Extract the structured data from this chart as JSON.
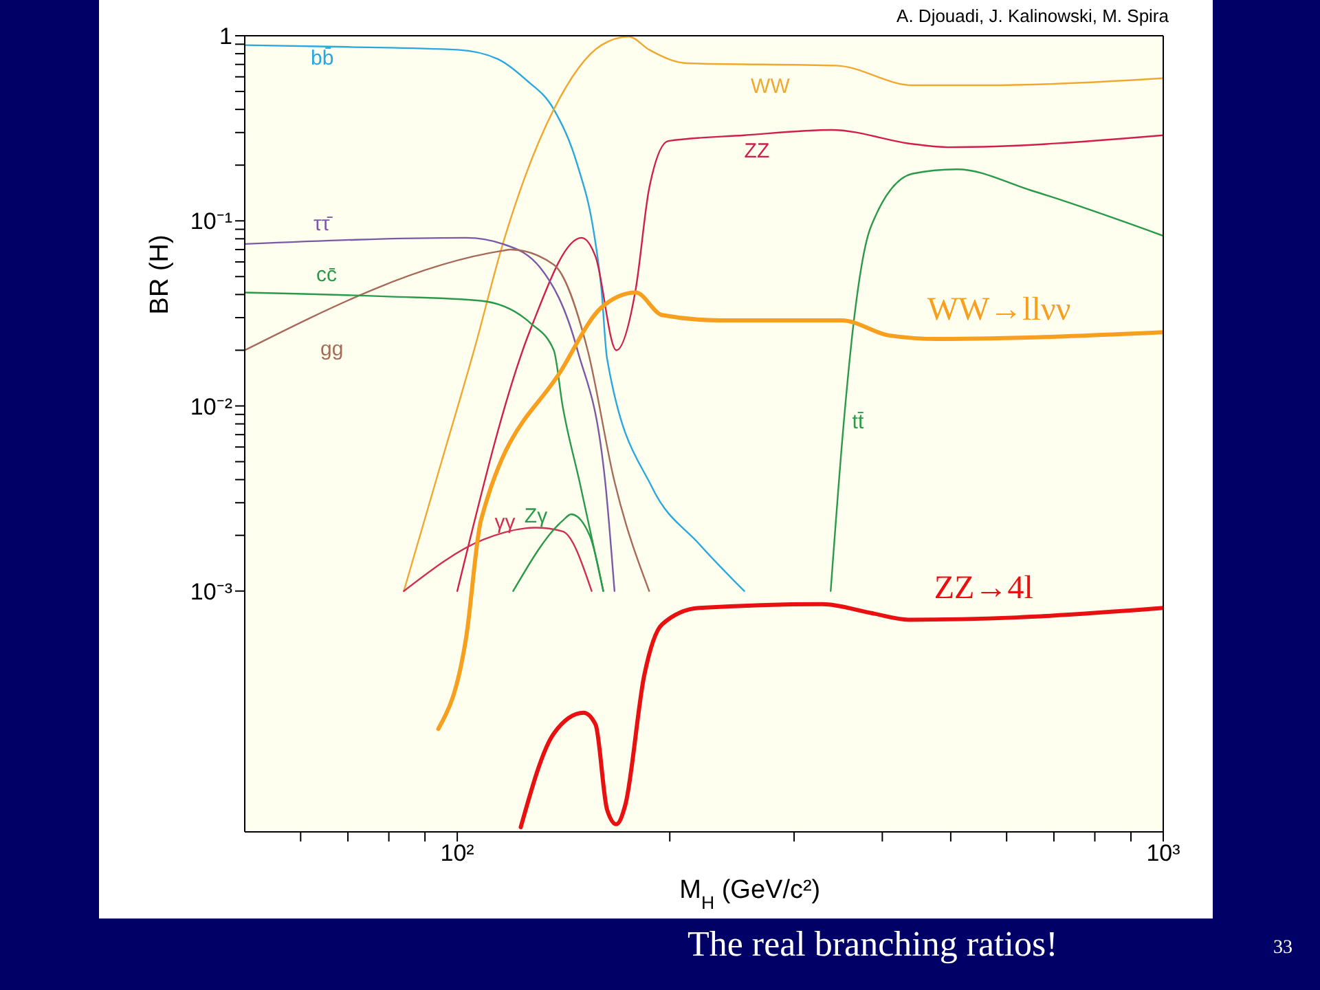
{
  "chart_data": {
    "type": "line",
    "log": "xy",
    "xlabel": "M$_{H}$  (GeV/c²)",
    "ylabel": "BR (H)",
    "marker": "none",
    "legend": false,
    "xlim": [
      50,
      1000
    ],
    "xticks": [
      {
        "value": 60,
        "label": null
      },
      {
        "value": 70,
        "label": null
      },
      {
        "value": 80,
        "label": null
      },
      {
        "value": 90,
        "label": null
      },
      {
        "value": 100,
        "label": "10²"
      },
      {
        "value": 200,
        "label": null
      },
      {
        "value": 300,
        "label": null
      },
      {
        "value": 400,
        "label": null
      },
      {
        "value": 500,
        "label": null
      },
      {
        "value": 600,
        "label": null
      },
      {
        "value": 700,
        "label": null
      },
      {
        "value": 800,
        "label": null
      },
      {
        "value": 900,
        "label": null
      },
      {
        "value": 1000,
        "label": "10³"
      }
    ],
    "ylim": [
      5e-05,
      1
    ],
    "yticks": [
      {
        "value": 0.001,
        "label": "10⁻³"
      },
      {
        "value": 0.002,
        "label": null
      },
      {
        "value": 0.003,
        "label": null
      },
      {
        "value": 0.004,
        "label": null
      },
      {
        "value": 0.005,
        "label": null
      },
      {
        "value": 0.006,
        "label": null
      },
      {
        "value": 0.007,
        "label": null
      },
      {
        "value": 0.008,
        "label": null
      },
      {
        "value": 0.009,
        "label": null
      },
      {
        "value": 0.01,
        "label": "10⁻²"
      },
      {
        "value": 0.02,
        "label": null
      },
      {
        "value": 0.03,
        "label": null
      },
      {
        "value": 0.04,
        "label": null
      },
      {
        "value": 0.05,
        "label": null
      },
      {
        "value": 0.06,
        "label": null
      },
      {
        "value": 0.07,
        "label": null
      },
      {
        "value": 0.08,
        "label": null
      },
      {
        "value": 0.09,
        "label": null
      },
      {
        "value": 0.1,
        "label": "10⁻¹"
      },
      {
        "value": 0.2,
        "label": null
      },
      {
        "value": 0.3,
        "label": null
      },
      {
        "value": 0.4,
        "label": null
      },
      {
        "value": 0.5,
        "label": null
      },
      {
        "value": 0.6,
        "label": null
      },
      {
        "value": 0.7,
        "label": null
      },
      {
        "value": 0.8,
        "label": null
      },
      {
        "value": 0.9,
        "label": null
      },
      1
    ],
    "series": [
      {
        "name": "bb̄",
        "color": "#29a8e0",
        "x": [
          50,
          70,
          100,
          114,
          125,
          137,
          148,
          156,
          160,
          163,
          189,
          220,
          255
        ],
        "values": [
          0.89,
          0.87,
          0.84,
          0.75,
          0.58,
          0.4,
          0.2,
          0.088,
          0.043,
          0.018,
          0.0036,
          0.0018,
          0.001
        ]
      },
      {
        "name": "WW",
        "color": "#f0a830",
        "x": [
          84,
          95,
          106,
          116,
          137,
          160,
          175,
          187,
          212,
          344,
          442,
          560,
          1000
        ],
        "values": [
          0.001,
          0.005,
          0.021,
          0.075,
          0.4,
          0.89,
          0.99,
          0.84,
          0.71,
          0.69,
          0.54,
          0.54,
          0.59
        ]
      },
      {
        "name": "ZZ",
        "color": "#d0204a",
        "x": [
          100,
          127,
          150,
          157,
          168,
          179,
          187,
          199,
          255,
          339,
          442,
          495,
          1000
        ],
        "values": [
          0.001,
          0.026,
          0.081,
          0.064,
          0.02,
          0.043,
          0.15,
          0.27,
          0.29,
          0.31,
          0.26,
          0.25,
          0.29
        ]
      },
      {
        "name": "ττ̄",
        "color": "#7a5aa8",
        "x": [
          50,
          103,
          116,
          131,
          148,
          162,
          167
        ],
        "values": [
          0.075,
          0.081,
          0.075,
          0.056,
          0.02,
          0.0039,
          0.001
        ]
      },
      {
        "name": "gg",
        "color": "#a86a58",
        "x": [
          50,
          116,
          119,
          137,
          153,
          167,
          187
        ],
        "values": [
          0.02,
          0.069,
          0.07,
          0.058,
          0.02,
          0.0039,
          0.001
        ]
      },
      {
        "name": "cc̄",
        "color": "#2a9a4a",
        "x": [
          50,
          80,
          108,
          127,
          137,
          141,
          149,
          161
        ],
        "values": [
          0.041,
          0.039,
          0.037,
          0.028,
          0.02,
          0.01,
          0.0039,
          0.001
        ]
      },
      {
        "name": "γγ",
        "color": "#d03050",
        "x": [
          84,
          109,
          129,
          141,
          155
        ],
        "values": [
          0.001,
          0.0019,
          0.0022,
          0.0021,
          0.001
        ]
      },
      {
        "name": "Zγ",
        "color": "#2a9a4a",
        "x": [
          120,
          141,
          145,
          154,
          161
        ],
        "values": [
          0.001,
          0.0024,
          0.0026,
          0.002,
          0.001
        ]
      },
      {
        "name": "tt̄",
        "color": "#2a9a4a",
        "x": [
          338,
          353,
          365,
          385,
          442,
          510,
          650,
          1000
        ],
        "values": [
          0.001,
          0.0084,
          0.03,
          0.092,
          0.18,
          0.19,
          0.146,
          0.083
        ]
      },
      {
        "name": "WW→llνν",
        "color": "#f7a020",
        "x": [
          94,
          103,
          108,
          141,
          160,
          179,
          195,
          236,
          350,
          410,
          480,
          1000
        ],
        "values": [
          0.00018,
          0.00057,
          0.0024,
          0.016,
          0.034,
          0.041,
          0.031,
          0.029,
          0.029,
          0.024,
          0.023,
          0.025
        ]
      },
      {
        "name": "ZZ→4l",
        "color": "#e81010",
        "x": [
          123,
          137,
          151,
          157,
          163,
          168,
          173,
          184,
          195,
          220,
          329,
          386,
          436,
          620,
          1000
        ],
        "values": [
          5.3e-05,
          0.00017,
          0.00022,
          0.00019,
          6.6e-05,
          5.5e-05,
          7e-05,
          0.00035,
          0.00066,
          0.00081,
          0.00085,
          0.00076,
          0.0007,
          0.00072,
          0.00081
        ]
      }
    ],
    "annotations": [
      "A. Djouadi,  J. Kalinowski,  M. Spira",
      "The real branching ratios!",
      "33"
    ]
  }
}
